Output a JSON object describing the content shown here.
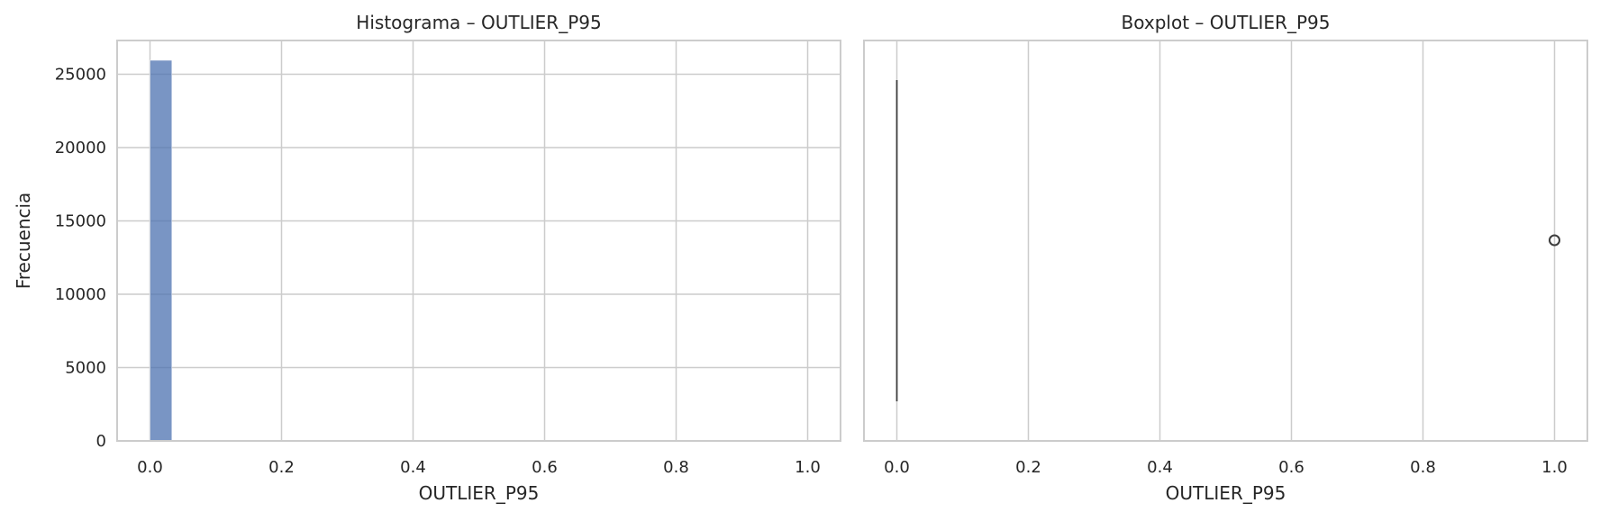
{
  "chart_data": [
    {
      "type": "bar",
      "title": "Histograma – OUTLIER_P95",
      "xlabel": "OUTLIER_P95",
      "ylabel": "Frecuencia",
      "xlim": [
        -0.05,
        1.05
      ],
      "ylim": [
        0,
        27300
      ],
      "xticks": [
        0.0,
        0.2,
        0.4,
        0.6,
        0.8,
        1.0
      ],
      "xtick_labels": [
        "0.0",
        "0.2",
        "0.4",
        "0.6",
        "0.8",
        "1.0"
      ],
      "yticks": [
        0,
        5000,
        10000,
        15000,
        20000,
        25000
      ],
      "ytick_labels": [
        "0",
        "5000",
        "10000",
        "15000",
        "20000",
        "25000"
      ],
      "grid": true,
      "bar_color": "#4c72b0",
      "bins": [
        {
          "x0": 0.0,
          "x1": 0.0333,
          "count": 25950
        },
        {
          "x0": 0.9667,
          "x1": 1.0,
          "count": 0
        }
      ]
    },
    {
      "type": "box",
      "title": "Boxplot – OUTLIER_P95",
      "xlabel": "OUTLIER_P95",
      "ylabel": "",
      "xlim": [
        -0.05,
        1.05
      ],
      "xticks": [
        0.0,
        0.2,
        0.4,
        0.6,
        0.8,
        1.0
      ],
      "xtick_labels": [
        "0.0",
        "0.2",
        "0.4",
        "0.6",
        "0.8",
        "1.0"
      ],
      "grid": true,
      "q1": 0.0,
      "median": 0.0,
      "q3": 0.0,
      "whisker_low": 0.0,
      "whisker_high": 0.0,
      "outliers": [
        1.0
      ]
    }
  ]
}
